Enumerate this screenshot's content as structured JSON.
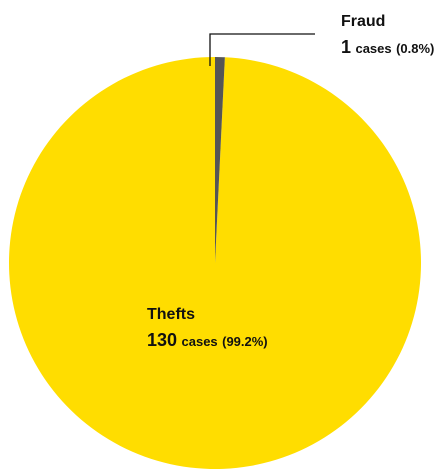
{
  "chart_data": {
    "type": "pie",
    "slices": [
      {
        "label": "Thefts",
        "value": 130,
        "unit": "cases",
        "percent_text": "(99.2%)",
        "color": "#FFDD00"
      },
      {
        "label": "Fraud",
        "value": 1,
        "unit": "cases",
        "percent_text": "(0.8%)",
        "color": "#555555"
      }
    ],
    "start_angle_deg": 0,
    "direction": "counterclockwise",
    "legend": "none",
    "label_style": "Thefts label inside slice; Fraud label outside top-right with leader line"
  }
}
